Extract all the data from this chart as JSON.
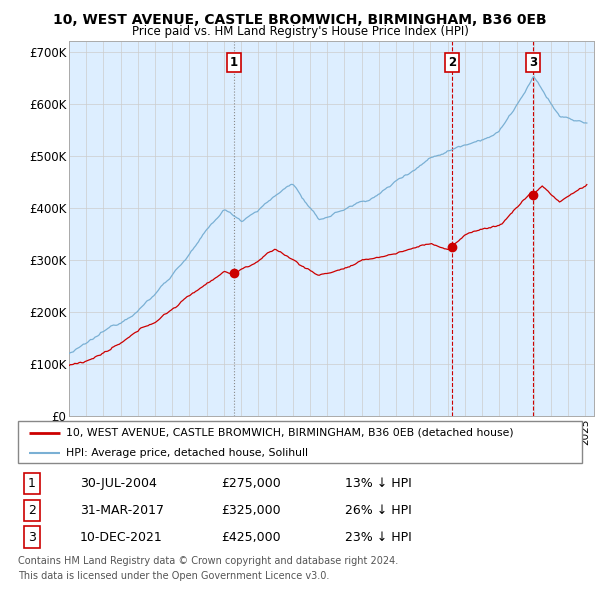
{
  "title": "10, WEST AVENUE, CASTLE BROMWICH, BIRMINGHAM, B36 0EB",
  "subtitle": "Price paid vs. HM Land Registry's House Price Index (HPI)",
  "ylim": [
    0,
    720000
  ],
  "yticks": [
    0,
    100000,
    200000,
    300000,
    400000,
    500000,
    600000,
    700000
  ],
  "ytick_labels": [
    "£0",
    "£100K",
    "£200K",
    "£300K",
    "£400K",
    "£500K",
    "£600K",
    "£700K"
  ],
  "legend_line1": "10, WEST AVENUE, CASTLE BROMWICH, BIRMINGHAM, B36 0EB (detached house)",
  "legend_line2": "HPI: Average price, detached house, Solihull",
  "line_color_red": "#cc0000",
  "line_color_blue": "#7ab0d4",
  "plot_bg_color": "#ddeeff",
  "vline_color_gray": "#aaaaaa",
  "vline_color_red": "#cc0000",
  "transactions": [
    {
      "num": 1,
      "date": "30-JUL-2004",
      "price": 275000,
      "pct": "13%",
      "dir": "↓",
      "x": 2004.58,
      "vline_style": "gray"
    },
    {
      "num": 2,
      "date": "31-MAR-2017",
      "price": 325000,
      "pct": "26%",
      "dir": "↓",
      "x": 2017.25,
      "vline_style": "red"
    },
    {
      "num": 3,
      "date": "10-DEC-2021",
      "price": 425000,
      "pct": "23%",
      "dir": "↓",
      "x": 2021.95,
      "vline_style": "red"
    }
  ],
  "footer1": "Contains HM Land Registry data © Crown copyright and database right 2024.",
  "footer2": "This data is licensed under the Open Government Licence v3.0.",
  "background_color": "#ffffff",
  "grid_color": "#cccccc"
}
